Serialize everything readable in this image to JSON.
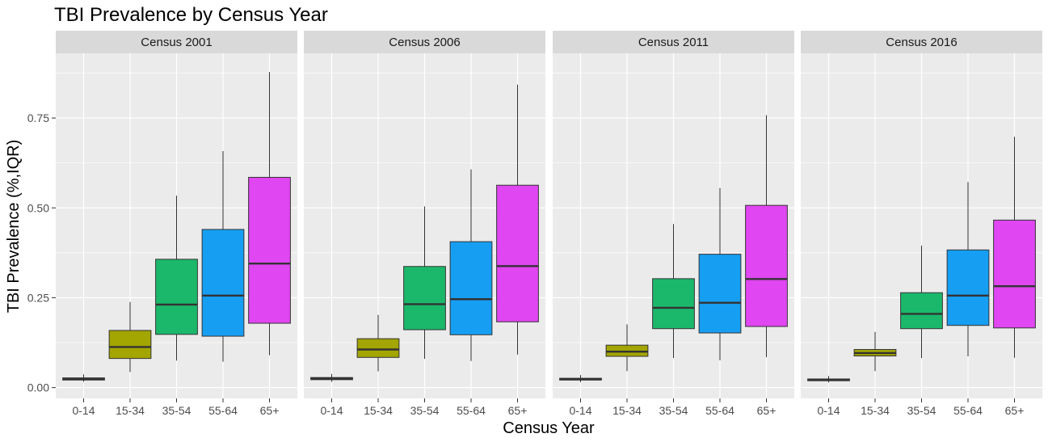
{
  "chart_data": {
    "type": "boxplot",
    "title": "TBI Prevalence by Census Year",
    "xlabel": "Census Year",
    "ylabel": "TBI Prevalence (%,IQR)",
    "ylim": [
      -0.03,
      0.93
    ],
    "y_ticks": [
      0,
      0.25,
      0.5,
      0.75
    ],
    "y_tick_labels": [
      "0.00",
      "0.25",
      "0.50",
      "0.75"
    ],
    "categories": [
      "0-14",
      "15-34",
      "35-54",
      "55-64",
      "65+"
    ],
    "colors": {
      "0-14": "#F8766D",
      "15-34": "#A3A500",
      "35-54": "#1BB86B",
      "55-64": "#169EF3",
      "65+": "#E046F2"
    },
    "panel_background": "#EBEBEB",
    "strip_background": "#D9D9D9",
    "grid": true,
    "legend": "none",
    "panels": [
      {
        "label": "Census 2001",
        "boxes": [
          {
            "category": "0-14",
            "whisker_low": 0.016,
            "q1": 0.021,
            "median": 0.024,
            "q3": 0.027,
            "whisker_high": 0.037
          },
          {
            "category": "15-34",
            "whisker_low": 0.043,
            "q1": 0.081,
            "median": 0.113,
            "q3": 0.159,
            "whisker_high": 0.238
          },
          {
            "category": "35-54",
            "whisker_low": 0.075,
            "q1": 0.148,
            "median": 0.231,
            "q3": 0.357,
            "whisker_high": 0.534
          },
          {
            "category": "55-64",
            "whisker_low": 0.072,
            "q1": 0.143,
            "median": 0.256,
            "q3": 0.44,
            "whisker_high": 0.658
          },
          {
            "category": "65+",
            "whisker_low": 0.09,
            "q1": 0.179,
            "median": 0.345,
            "q3": 0.585,
            "whisker_high": 0.878
          }
        ]
      },
      {
        "label": "Census 2006",
        "boxes": [
          {
            "category": "0-14",
            "whisker_low": 0.016,
            "q1": 0.022,
            "median": 0.025,
            "q3": 0.028,
            "whisker_high": 0.038
          },
          {
            "category": "15-34",
            "whisker_low": 0.045,
            "q1": 0.084,
            "median": 0.106,
            "q3": 0.136,
            "whisker_high": 0.202
          },
          {
            "category": "35-54",
            "whisker_low": 0.08,
            "q1": 0.161,
            "median": 0.232,
            "q3": 0.337,
            "whisker_high": 0.504
          },
          {
            "category": "55-64",
            "whisker_low": 0.074,
            "q1": 0.147,
            "median": 0.246,
            "q3": 0.406,
            "whisker_high": 0.607
          },
          {
            "category": "65+",
            "whisker_low": 0.092,
            "q1": 0.183,
            "median": 0.338,
            "q3": 0.563,
            "whisker_high": 0.843
          }
        ]
      },
      {
        "label": "Census 2011",
        "boxes": [
          {
            "category": "0-14",
            "whisker_low": 0.015,
            "q1": 0.021,
            "median": 0.023,
            "q3": 0.026,
            "whisker_high": 0.035
          },
          {
            "category": "15-34",
            "whisker_low": 0.046,
            "q1": 0.087,
            "median": 0.1,
            "q3": 0.118,
            "whisker_high": 0.176
          },
          {
            "category": "35-54",
            "whisker_low": 0.082,
            "q1": 0.164,
            "median": 0.222,
            "q3": 0.303,
            "whisker_high": 0.455
          },
          {
            "category": "55-64",
            "whisker_low": 0.076,
            "q1": 0.152,
            "median": 0.236,
            "q3": 0.371,
            "whisker_high": 0.555
          },
          {
            "category": "65+",
            "whisker_low": 0.085,
            "q1": 0.17,
            "median": 0.302,
            "q3": 0.507,
            "whisker_high": 0.758
          }
        ]
      },
      {
        "label": "Census 2016",
        "boxes": [
          {
            "category": "0-14",
            "whisker_low": 0.014,
            "q1": 0.019,
            "median": 0.021,
            "q3": 0.024,
            "whisker_high": 0.032
          },
          {
            "category": "15-34",
            "whisker_low": 0.046,
            "q1": 0.088,
            "median": 0.096,
            "q3": 0.106,
            "whisker_high": 0.155
          },
          {
            "category": "35-54",
            "whisker_low": 0.082,
            "q1": 0.164,
            "median": 0.205,
            "q3": 0.264,
            "whisker_high": 0.395
          },
          {
            "category": "55-64",
            "whisker_low": 0.087,
            "q1": 0.173,
            "median": 0.256,
            "q3": 0.383,
            "whisker_high": 0.572
          },
          {
            "category": "65+",
            "whisker_low": 0.083,
            "q1": 0.166,
            "median": 0.282,
            "q3": 0.466,
            "whisker_high": 0.698
          }
        ]
      }
    ]
  }
}
